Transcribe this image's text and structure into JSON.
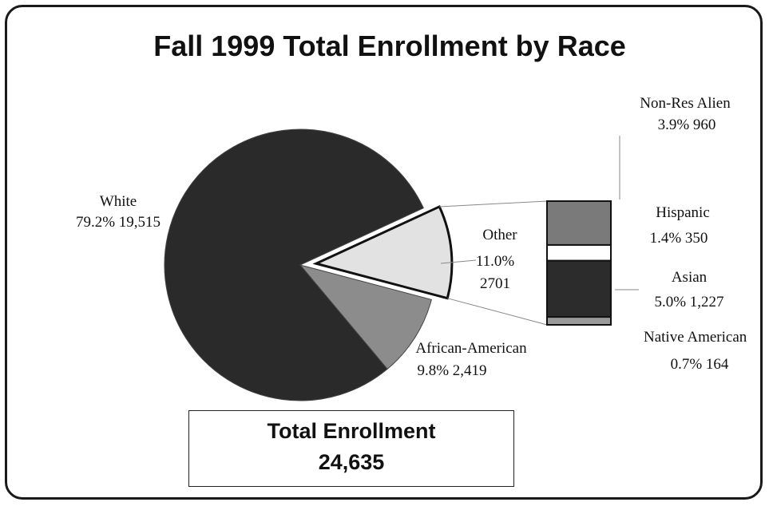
{
  "chart_data": {
    "type": "pie",
    "title": "Fall 1999 Total Enrollment by Race",
    "slices": [
      {
        "label": "White",
        "line2": "79.2% 19,515",
        "percent": 79.2,
        "value": 19515,
        "color": "#2a2a2a"
      },
      {
        "label": "African-American",
        "line2": "9.8% 2,419",
        "percent": 9.8,
        "value": 2419,
        "color": "#8c8c8c"
      },
      {
        "label": "Other",
        "line2": "11.0%",
        "line3": "2701",
        "percent": 11.0,
        "value": 2701,
        "color": "#e2e2e2"
      }
    ],
    "breakdown": {
      "of": "Other",
      "items": [
        {
          "label": "Non-Res Alien",
          "line2": "3.9% 960",
          "percent": 3.9,
          "value": 960,
          "color": "#7a7a7a"
        },
        {
          "label": "Hispanic",
          "line2": "1.4% 350",
          "percent": 1.4,
          "value": 350,
          "color": "#ffffff"
        },
        {
          "label": "Asian",
          "line2": "5.0% 1,227",
          "percent": 5.0,
          "value": 1227,
          "color": "#2c2c2c"
        },
        {
          "label": "Native American",
          "line2": "0.7% 164",
          "percent": 0.7,
          "value": 164,
          "color": "#9a9a9a"
        }
      ]
    },
    "total_label": "Total Enrollment",
    "total_value": "24,635"
  }
}
